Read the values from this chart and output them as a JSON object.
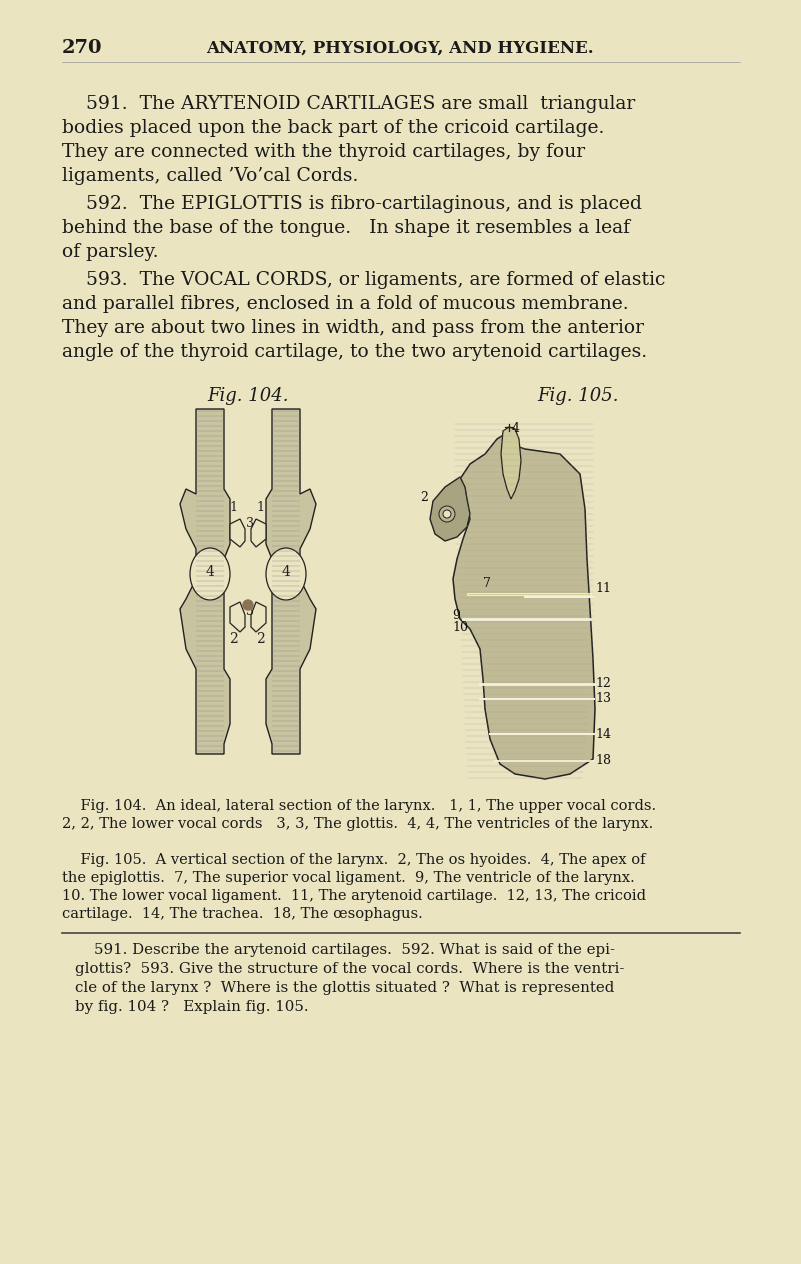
{
  "bg_color": "#EAE4C0",
  "page_number": "270",
  "header": "ANATOMY, PHYSIOLOGY, AND HYGIENE.",
  "text_color": "#1a1a1a",
  "line_color": "#333333",
  "fig104_title": "Fig. 104.",
  "fig105_title": "Fig. 105.",
  "para591_prefix": "591.",
  "para591_text": "The ARYTENOID CARTILAGES are small  triangular bodies placed upon the back part of the cricoid cartilage.  They are connected with the thyroid cartilages, by four ligaments, called Vo’cal Cords.",
  "para592_prefix": "592.",
  "para592_text": "The EPIGLOTTIS is fibro-cartilaginous, and is placed behind the base of the tongue.   In shape it resembles a leaf of parsley.",
  "para593_prefix": "593.",
  "para593_text": "The VOCAL CORDS, or ligaments, are formed of elastic and parallel fibres, enclosed in a fold of mucous membrane.  They are about two lines in width, and pass from the anterior angle of the thyroid cartilage, to the two arytenoid cartilages.",
  "caption104_line1": "Fig. 104.  An ideal, lateral section of the larynx.   1, 1, The upper vocal cords.",
  "caption104_line2": "2, 2, The lower vocal cords   3, 3, The glottis.  4, 4, The ventricles of the larynx.",
  "caption105_line1": "Fig. 105.  A vertical section of the larynx.  2, The os hyoides.  4, The apex of",
  "caption105_line2": "the epiglottis.  7, The superior vocal ligament.  9, The ventricle of the larynx.",
  "caption105_line3": "10. The lower vocal ligament.  11, The arytenoid cartilage.  12, 13, The cricoid",
  "caption105_line4": "cartilage.  14, The trachea.  18, The œsophagus.",
  "question_line1": "591. Describe the arytenoid cartilages.  592. What is said of the epi-",
  "question_line2": "glottis?  593. Give the structure of the vocal cords.  Where is the ventri-",
  "question_line3": "cle of the larynx ?  Where is the glottis situated ?  What is represented",
  "question_line4": "by fig. 104 ?   Explain fig. 105.",
  "hatch_color": "#888888",
  "dark_color": "#2a2a2a",
  "mid_color": "#666666",
  "fig_fill": "#c8c4a0",
  "fig_fill2": "#b5b088"
}
